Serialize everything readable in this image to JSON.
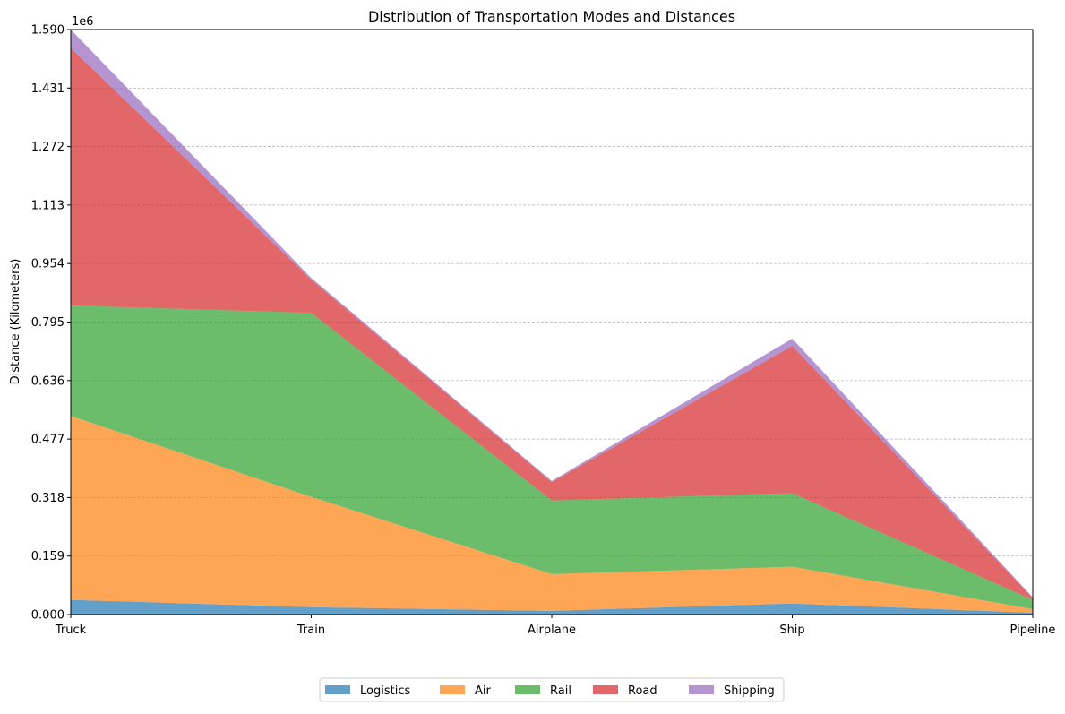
{
  "chart_data": {
    "type": "area",
    "stacked": true,
    "title": "Distribution of Transportation Modes and Distances",
    "ylabel": "Distance (Kilometers)",
    "xlabel": "",
    "y_offset_text": "1e6",
    "categories": [
      "Truck",
      "Train",
      "Airplane",
      "Ship",
      "Pipeline"
    ],
    "ylim": [
      0,
      1.59
    ],
    "yticks": [
      "0.000",
      "0.159",
      "0.318",
      "0.477",
      "0.636",
      "0.795",
      "0.954",
      "1.113",
      "1.272",
      "1.431",
      "1.590"
    ],
    "grid": "horizontal",
    "legend_placement": "bottom-center",
    "series": [
      {
        "name": "Logistics",
        "values": [
          0.04,
          0.02,
          0.01,
          0.03,
          0.005
        ],
        "color": "#1f77b4"
      },
      {
        "name": "Air",
        "values": [
          0.5,
          0.3,
          0.1,
          0.1,
          0.01
        ],
        "color": "#ff7f0e"
      },
      {
        "name": "Rail",
        "values": [
          0.3,
          0.5,
          0.2,
          0.2,
          0.025
        ],
        "color": "#2ca02c"
      },
      {
        "name": "Road",
        "values": [
          0.7,
          0.09,
          0.05,
          0.4,
          0.005
        ],
        "color": "#d62728"
      },
      {
        "name": "Shipping",
        "values": [
          0.05,
          0.005,
          0.003,
          0.02,
          0.002
        ],
        "color": "#9467bd"
      }
    ]
  }
}
